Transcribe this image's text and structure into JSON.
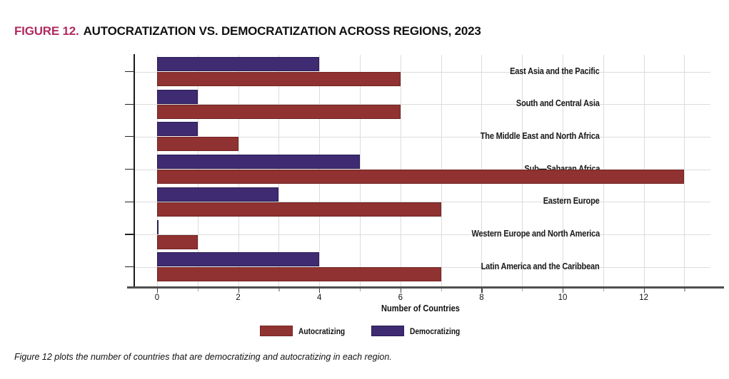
{
  "figure": {
    "label": "FIGURE 12.",
    "title": "AUTOCRATIZATION VS. DEMOCRATIZATION ACROSS REGIONS, 2023",
    "caption": "Figure 12 plots the number of countries that are democratizing and autocratizing in each region."
  },
  "chart_data": {
    "type": "bar",
    "orientation": "horizontal",
    "title": "Autocratization vs. Democratization Across Regions, 2023",
    "categories": [
      "East Asia and the Pacific",
      "South and Central Asia",
      "The Middle East and North Africa",
      "Sub—Saharan Africa",
      "Eastern Europe",
      "Western Europe and North America",
      "Latin America and the Caribbean"
    ],
    "series": [
      {
        "name": "Democratizing",
        "color": "#3e2b72",
        "border": "#2a1d52",
        "values": [
          4,
          1,
          1,
          5,
          3,
          0,
          4
        ]
      },
      {
        "name": "Autocratizing",
        "color": "#903231",
        "border": "#702624",
        "values": [
          6,
          6,
          2,
          13,
          7,
          1,
          7
        ]
      }
    ],
    "xlabel": "Number of Countries",
    "x_ticks": [
      0,
      2,
      4,
      6,
      8,
      10,
      12
    ],
    "x_minor_tick_step": 1,
    "xlim": [
      0,
      13.6
    ],
    "grid": true,
    "grid_color": "#dcdcdc",
    "legend": [
      {
        "label": "Autocratizing",
        "color": "#903231",
        "border": "#702624"
      },
      {
        "label": "Democratizing",
        "color": "#3e2b72",
        "border": "#2a1d52"
      }
    ],
    "legend_position": "bottom-center"
  },
  "colors": {
    "accent_figure_label": "#b12a5f",
    "text": "#1a1a1a",
    "spine": "#1a1a1a",
    "axis_line": "#4f4f4f",
    "gridline": "#dcdcdc"
  }
}
